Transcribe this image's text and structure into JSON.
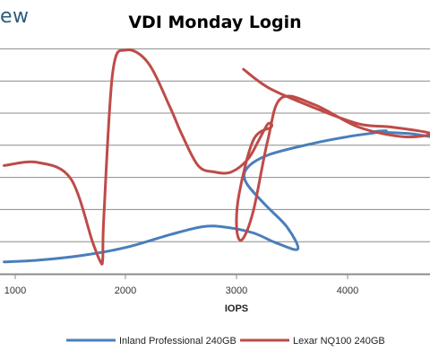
{
  "logo": {
    "text": "ew"
  },
  "chart_data": {
    "type": "line",
    "title": "VDI Monday Login",
    "xlabel": "IOPS",
    "ylabel": "",
    "xlim": [
      900,
      4750
    ],
    "ylim": [
      0,
      8
    ],
    "xticks": [
      1000,
      2000,
      3000,
      4000
    ],
    "y_gridlines": [
      1,
      2,
      3,
      4,
      5,
      6,
      7,
      8
    ],
    "grid": true,
    "legend_position": "bottom",
    "series": [
      {
        "name": "Inland Professional 240GB",
        "color": "#4a7ebb",
        "x": [
          900,
          1200,
          1600,
          2000,
          2400,
          2700,
          2900,
          3150,
          3350,
          3550,
          3450,
          3250,
          3080,
          3100,
          3300,
          3700,
          4000,
          4200,
          4350,
          4250,
          4550,
          4750
        ],
        "y": [
          0.4,
          0.45,
          0.6,
          0.85,
          1.25,
          1.5,
          1.48,
          1.3,
          1.0,
          0.8,
          1.5,
          2.2,
          2.9,
          3.35,
          3.75,
          4.1,
          4.3,
          4.4,
          4.48,
          4.45,
          4.4,
          4.3
        ]
      },
      {
        "name": "Lexar NQ100 240GB",
        "color": "#be4b48",
        "x": [
          900,
          1200,
          1500,
          1700,
          1770,
          1790,
          1800,
          1880,
          2000,
          2200,
          2400,
          2500,
          2650,
          2800,
          2950,
          3100,
          3200,
          3280,
          3310,
          3150,
          3020,
          3000,
          3050,
          3150,
          3280,
          3400,
          3700,
          4100,
          4500,
          4750,
          4400,
          4100,
          3700,
          3300,
          3060
        ],
        "y": [
          3.4,
          3.5,
          3.0,
          1.0,
          0.4,
          0.5,
          1.8,
          6.3,
          7.0,
          6.6,
          5.2,
          4.4,
          3.4,
          3.2,
          3.2,
          3.6,
          4.2,
          4.7,
          4.6,
          4.2,
          2.5,
          1.4,
          1.1,
          2.0,
          4.2,
          5.5,
          5.3,
          4.6,
          4.3,
          4.4,
          4.6,
          4.7,
          5.2,
          5.8,
          6.4
        ]
      }
    ]
  }
}
